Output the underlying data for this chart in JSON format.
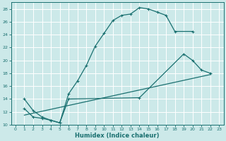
{
  "xlabel": "Humidex (Indice chaleur)",
  "bg_color": "#cce9e9",
  "line_color": "#1a7070",
  "grid_color": "#ffffff",
  "xlim": [
    -0.5,
    23.5
  ],
  "ylim": [
    10,
    29
  ],
  "xticks": [
    0,
    1,
    2,
    3,
    4,
    5,
    6,
    7,
    8,
    9,
    10,
    11,
    12,
    13,
    14,
    15,
    16,
    17,
    18,
    19,
    20,
    21,
    22,
    23
  ],
  "yticks": [
    10,
    12,
    14,
    16,
    18,
    20,
    22,
    24,
    26,
    28
  ],
  "curve1_x": [
    1,
    2,
    3,
    4,
    5,
    6,
    7,
    8,
    9,
    10,
    11,
    12,
    13,
    14,
    15,
    16,
    17,
    18,
    20
  ],
  "curve1_y": [
    14,
    12.2,
    11.2,
    10.7,
    10.3,
    14.8,
    16.8,
    19.2,
    22.2,
    24.2,
    26.2,
    27.0,
    27.2,
    28.2,
    28.0,
    27.5,
    27.0,
    24.5,
    24.5
  ],
  "curve2_x": [
    1,
    2,
    3,
    4,
    5,
    6,
    14,
    19,
    20,
    21,
    22
  ],
  "curve2_y": [
    12.5,
    11.2,
    11.0,
    10.7,
    10.3,
    14.0,
    14.2,
    21.0,
    20.0,
    18.5,
    18.0
  ],
  "curve3_x": [
    1,
    22
  ],
  "curve3_y": [
    11.5,
    17.8
  ]
}
